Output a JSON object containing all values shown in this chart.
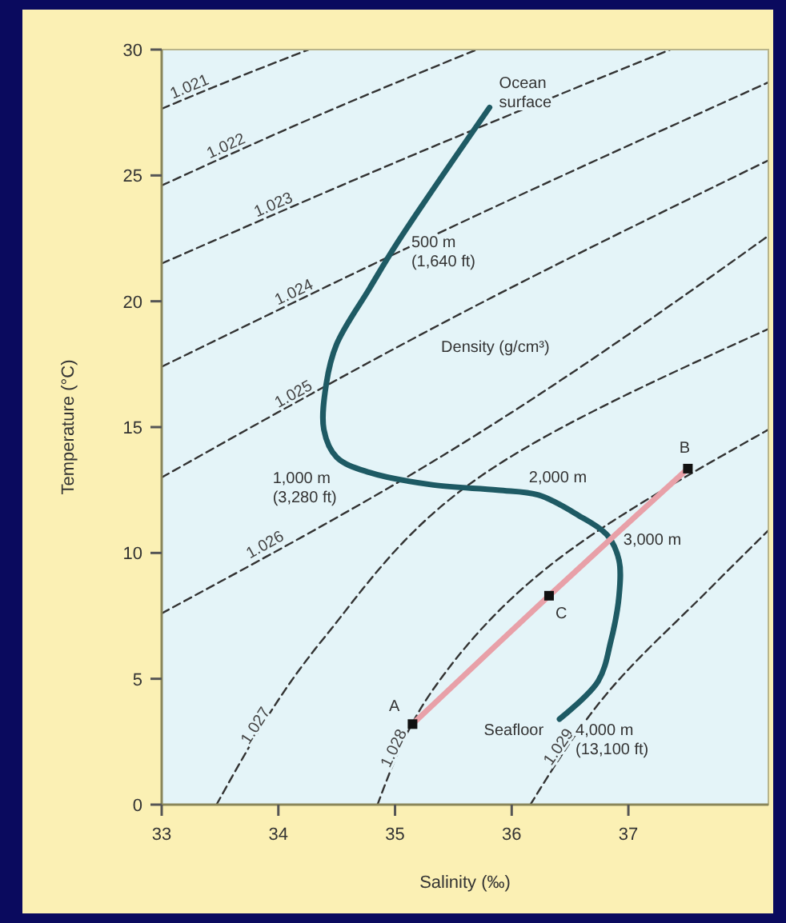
{
  "chart_data": {
    "type": "line",
    "xlabel": "Salinity (‰)",
    "ylabel": "Temperature (°C)",
    "xlim": [
      33,
      38.2
    ],
    "ylim": [
      0,
      30
    ],
    "xticks": [
      33,
      34,
      35,
      36,
      37
    ],
    "yticks": [
      0,
      5,
      10,
      15,
      20,
      25,
      30
    ],
    "grid": false,
    "series": [
      {
        "name": "1.021",
        "color": "#333333",
        "line_style": "dashed",
        "x": [
          33,
          33.6,
          34.26
        ],
        "values": [
          27.65,
          28.8,
          30
        ]
      },
      {
        "name": "1.022",
        "color": "#333333",
        "line_style": "dashed",
        "x": [
          33,
          34.3,
          35.7
        ],
        "values": [
          24.6,
          27.3,
          30
        ]
      },
      {
        "name": "1.023",
        "color": "#333333",
        "line_style": "dashed",
        "x": [
          33,
          35.2,
          37.36
        ],
        "values": [
          21.5,
          25.9,
          30
        ]
      },
      {
        "name": "1.024",
        "color": "#333333",
        "line_style": "dashed",
        "x": [
          33,
          35.6,
          38.2
        ],
        "values": [
          17.4,
          23.2,
          28.7
        ]
      },
      {
        "name": "1.025",
        "color": "#333333",
        "line_style": "dashed",
        "x": [
          33,
          35.6,
          38.2
        ],
        "values": [
          13.0,
          19.6,
          25.6
        ]
      },
      {
        "name": "1.026",
        "color": "#333333",
        "line_style": "dashed",
        "x": [
          33,
          35.06,
          38.2
        ],
        "values": [
          7.6,
          12.9,
          22.6
        ]
      },
      {
        "name": "1.027",
        "color": "#333333",
        "line_style": "dashed",
        "x": [
          33.47,
          34.37,
          35.88,
          38.2
        ],
        "values": [
          0,
          6.5,
          13.5,
          18.9
        ]
      },
      {
        "name": "1.028",
        "color": "#333333",
        "line_style": "dashed",
        "x": [
          34.85,
          35.33,
          36.3,
          38.2
        ],
        "values": [
          0,
          4.6,
          9.4,
          14.9
        ]
      },
      {
        "name": "1.029",
        "color": "#333333",
        "line_style": "dashed",
        "x": [
          36.16,
          36.85,
          37.68,
          38.2
        ],
        "values": [
          0,
          4.6,
          8.5,
          10.9
        ]
      },
      {
        "color": "#1e5a64",
        "line_style": "solid",
        "x": [
          35.81,
          35.03,
          34.78,
          34.5,
          34.41,
          34.39,
          34.5,
          34.78,
          35.33,
          35.88,
          36.23,
          36.57,
          36.82,
          36.92,
          36.92,
          36.85,
          36.74,
          36.41
        ],
        "values": [
          27.7,
          22.4,
          20.5,
          18.3,
          16.7,
          14.9,
          13.8,
          13.2,
          12.7,
          12.5,
          12.3,
          11.5,
          10.7,
          9.7,
          8.3,
          6.5,
          4.9,
          3.4
        ]
      },
      {
        "color": "#e8a0a8",
        "line_style": "solid",
        "marker": "square",
        "x": [
          35.15,
          36.32,
          37.51
        ],
        "values": [
          3.2,
          8.3,
          13.35
        ]
      }
    ],
    "annotations": [
      {
        "text": "Ocean\nsurface",
        "x": 35.81,
        "y": 27.7
      },
      {
        "text": "500 m\n(1,640 ft)",
        "x": 35.03,
        "y": 22.4
      },
      {
        "text": "1,000 m\n(3,280 ft)",
        "x": 34.5,
        "y": 13.8
      },
      {
        "text": "2,000 m",
        "x": 36.23,
        "y": 12.3
      },
      {
        "text": "3,000 m",
        "x": 36.82,
        "y": 10.7
      },
      {
        "text": "Seafloor",
        "x": 36.41,
        "y": 3.4
      },
      {
        "text": "4,000 m\n(13,100 ft)",
        "x": 36.41,
        "y": 3.4
      },
      {
        "text": "A",
        "x": 35.15,
        "y": 3.2
      },
      {
        "text": "B",
        "x": 37.51,
        "y": 13.35
      },
      {
        "text": "C",
        "x": 36.32,
        "y": 8.3
      },
      "Density (g/cm³)"
    ]
  }
}
